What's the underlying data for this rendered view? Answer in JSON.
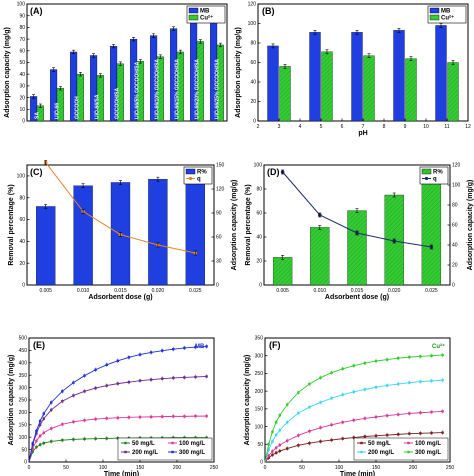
{
  "colors": {
    "mb": "#1f3fe0",
    "cu": "#33cc33",
    "mb_line": "#1f2a6b",
    "orange": "#e8822a",
    "c50": "#1e7e1e",
    "c100": "#e0359b",
    "c200": "#6b2a8a",
    "c300": "#1f2fd9",
    "cu50": "#7a1f1f",
    "cu100": "#d6399c",
    "cu200": "#3dd6f0",
    "cu300": "#33cc33"
  },
  "chart_data": [
    {
      "panel": "(A)",
      "type": "bar",
      "ylabel": "Adsorption capacity (mg/g)",
      "ylim": [
        0,
        100
      ],
      "yticks": [
        0,
        10,
        20,
        30,
        40,
        50,
        60,
        70,
        80,
        90,
        100
      ],
      "categories": [
        "SA",
        "UiO-66",
        "GOCOOH",
        "UiO-66/SA",
        "GOCOOH/SA",
        "UiO-66/5% GOCOOH/SA",
        "UiO-66/10% GOCOOH/SA",
        "UiO-66/15% GOCOOH/SA",
        "UiO-66/20% GOCOOH/SA",
        "UiO-66/25% GOCOOH/SA"
      ],
      "series": [
        {
          "name": "MB",
          "values": [
            21,
            44,
            59,
            56,
            64,
            70,
            73,
            79,
            92,
            87
          ]
        },
        {
          "name": "Cu²⁺",
          "values": [
            13,
            28,
            40,
            39,
            49,
            51,
            55,
            59,
            68,
            65
          ]
        }
      ],
      "legend": "top-right"
    },
    {
      "panel": "(B)",
      "type": "bar",
      "xlabel": "pH",
      "ylabel": "Adsorption capacity (mg/g)",
      "ylim": [
        0,
        120
      ],
      "xlim": [
        2,
        12
      ],
      "yticks": [
        0,
        20,
        40,
        60,
        80,
        100,
        120
      ],
      "xticks": [
        2,
        3,
        4,
        5,
        6,
        7,
        8,
        9,
        10,
        11,
        12
      ],
      "x": [
        3,
        5,
        7,
        9,
        11
      ],
      "series": [
        {
          "name": "MB",
          "values": [
            77,
            91,
            91,
            93,
            98
          ]
        },
        {
          "name": "Cu²⁺",
          "values": [
            56,
            71,
            67,
            64,
            60
          ]
        }
      ],
      "legend": "top-right"
    },
    {
      "panel": "(C)",
      "type": "bar",
      "xlabel": "Adsorbent dose (g)",
      "ylabel": "Removal percentage (%)",
      "y2label": "Adsorption capacity (mg/g)",
      "ylim": [
        0,
        110
      ],
      "y2lim": [
        0,
        150
      ],
      "yticks": [
        0,
        20,
        40,
        60,
        80,
        100
      ],
      "y2ticks": [
        0,
        30,
        60,
        90,
        120,
        150
      ],
      "categories": [
        "0.005",
        "0.010",
        "0.015",
        "0.020",
        "0.025"
      ],
      "series": [
        {
          "name": "R%",
          "values": [
            72,
            91,
            94,
            97,
            100
          ],
          "axis": "left"
        },
        {
          "name": "q",
          "values": [
            153,
            92,
            63,
            50,
            40
          ],
          "axis": "right"
        }
      ],
      "legend": "top-right"
    },
    {
      "panel": "(D)",
      "type": "bar",
      "xlabel": "Adsorbent dose (g)",
      "ylabel": "Removal percentage (%)",
      "y2label": "Adsorption capacity (mg/g)",
      "ylim": [
        0,
        100
      ],
      "y2lim": [
        0,
        120
      ],
      "yticks": [
        0,
        20,
        40,
        60,
        80,
        100
      ],
      "y2ticks": [
        0,
        20,
        40,
        60,
        80,
        100,
        120
      ],
      "categories": [
        "0.005",
        "0.010",
        "0.015",
        "0.020",
        "0.025"
      ],
      "series": [
        {
          "name": "R%",
          "values": [
            23,
            48,
            62,
            75,
            88
          ],
          "axis": "left"
        },
        {
          "name": "q",
          "values": [
            113,
            70,
            52,
            44,
            38
          ],
          "axis": "right"
        }
      ],
      "legend": "top-right"
    },
    {
      "panel": "(E)",
      "type": "line",
      "annotation": "MB",
      "xlabel": "Time (min)",
      "ylabel": "Adsorption capacity (mg/g)",
      "xlim": [
        0,
        250
      ],
      "ylim": [
        0,
        500
      ],
      "xticks": [
        0,
        50,
        100,
        150,
        200,
        250
      ],
      "yticks": [
        0,
        50,
        100,
        150,
        200,
        250,
        300,
        350,
        400,
        450,
        500
      ],
      "x": [
        0,
        5,
        10,
        15,
        20,
        30,
        45,
        60,
        75,
        90,
        105,
        120,
        135,
        150,
        165,
        180,
        195,
        210,
        225,
        240
      ],
      "series": [
        {
          "name": "50 mg/L",
          "values": [
            0,
            42,
            60,
            70,
            76,
            83,
            88,
            91,
            93,
            94,
            95,
            96,
            96,
            97,
            97,
            97,
            98,
            98,
            98,
            98
          ]
        },
        {
          "name": "100 mg/L",
          "values": [
            0,
            55,
            85,
            105,
            118,
            135,
            152,
            162,
            168,
            173,
            176,
            178,
            180,
            181,
            182,
            183,
            184,
            184,
            185,
            185
          ]
        },
        {
          "name": "200 mg/L",
          "values": [
            0,
            70,
            115,
            150,
            175,
            210,
            245,
            268,
            285,
            298,
            308,
            316,
            322,
            328,
            332,
            336,
            339,
            341,
            343,
            345
          ]
        },
        {
          "name": "300 mg/L",
          "values": [
            0,
            75,
            125,
            165,
            195,
            240,
            285,
            320,
            348,
            372,
            392,
            408,
            422,
            433,
            442,
            449,
            455,
            460,
            463,
            466
          ]
        }
      ],
      "legend": "bottom-right"
    },
    {
      "panel": "(F)",
      "type": "line",
      "annotation": "Cu²⁺",
      "xlabel": "Time (min)",
      "ylabel": "Adsorption capacity (mg/g)",
      "xlim": [
        0,
        250
      ],
      "ylim": [
        0,
        350
      ],
      "xticks": [
        0,
        50,
        100,
        150,
        200,
        250
      ],
      "yticks": [
        0,
        50,
        100,
        150,
        200,
        250,
        300,
        350
      ],
      "x": [
        0,
        5,
        10,
        15,
        20,
        30,
        45,
        60,
        75,
        90,
        105,
        120,
        135,
        150,
        165,
        180,
        195,
        210,
        225,
        240
      ],
      "series": [
        {
          "name": "50 mg/L",
          "values": [
            0,
            12,
            20,
            26,
            31,
            38,
            47,
            53,
            58,
            62,
            66,
            69,
            72,
            74,
            76,
            78,
            80,
            81,
            82,
            83
          ]
        },
        {
          "name": "100 mg/L",
          "values": [
            0,
            18,
            30,
            40,
            48,
            60,
            75,
            87,
            97,
            105,
            112,
            118,
            123,
            127,
            131,
            134,
            137,
            139,
            141,
            143
          ]
        },
        {
          "name": "200 mg/L",
          "values": [
            0,
            35,
            58,
            76,
            90,
            112,
            138,
            155,
            168,
            180,
            190,
            198,
            205,
            211,
            216,
            220,
            224,
            227,
            229,
            231
          ]
        },
        {
          "name": "300 mg/L",
          "values": [
            0,
            50,
            85,
            112,
            132,
            162,
            196,
            220,
            238,
            252,
            263,
            272,
            279,
            285,
            289,
            293,
            296,
            298,
            300,
            302
          ]
        }
      ],
      "legend": "bottom-right"
    }
  ]
}
